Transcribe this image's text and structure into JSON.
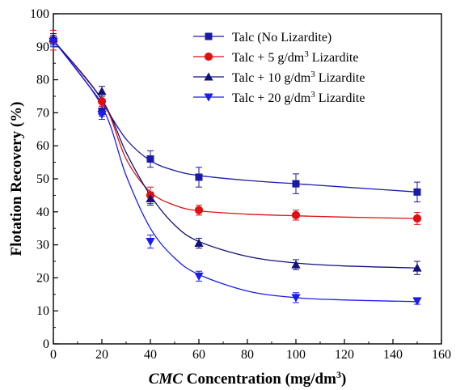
{
  "chart_data": {
    "type": "scatter",
    "title": "",
    "xlabel": {
      "italic": "CMC",
      "rest": " Concentration (mg/dm",
      "sup": "3",
      "close": ")"
    },
    "ylabel": "Flotation Recovery (%)",
    "xlim": [
      0,
      160
    ],
    "ylim": [
      0,
      100
    ],
    "xticks": [
      0,
      20,
      40,
      60,
      80,
      100,
      120,
      140,
      160
    ],
    "yticks": [
      0,
      10,
      20,
      30,
      40,
      50,
      60,
      70,
      80,
      90,
      100
    ],
    "grid": false,
    "legend_position": "top-right",
    "series": [
      {
        "name": "Talc (No Lizardite)",
        "legend": {
          "pre": "Talc (No Lizardite)",
          "sup": "",
          "post": ""
        },
        "color": "#1a1aa8",
        "marker": "square",
        "x": [
          0,
          20,
          40,
          60,
          100,
          150
        ],
        "y": [
          92,
          70.5,
          56,
          50.5,
          48.5,
          46
        ],
        "err": [
          1.5,
          1.5,
          2.5,
          3,
          3,
          3
        ],
        "fit": [
          0,
          92,
          20,
          73,
          30,
          62,
          40,
          55.5,
          50,
          52.5,
          60,
          51,
          80,
          49.5,
          100,
          48.5,
          120,
          47.5,
          150,
          46
        ]
      },
      {
        "name": "Talc + 5 g/dm³ Lizardite",
        "legend": {
          "pre": "Talc + 5   g/dm",
          "sup": "3",
          "post": " Lizardite"
        },
        "color": "#e01010",
        "marker": "circle",
        "x": [
          0,
          20,
          40,
          60,
          100,
          150
        ],
        "y": [
          92,
          73.5,
          45,
          40.5,
          39,
          38
        ],
        "err": [
          3,
          1.5,
          2.5,
          1.5,
          1.5,
          1.8
        ],
        "fit": [
          0,
          92,
          20,
          74,
          30,
          56,
          40,
          46,
          50,
          42,
          60,
          40.3,
          80,
          39.3,
          100,
          38.8,
          120,
          38.4,
          150,
          38
        ]
      },
      {
        "name": "Talc + 10 g/dm³ Lizardite",
        "legend": {
          "pre": "Talc + 10 g/dm",
          "sup": "3",
          "post": " Lizardite"
        },
        "color": "#12127a",
        "marker": "triangle-up",
        "x": [
          0,
          20,
          40,
          60,
          100,
          150
        ],
        "y": [
          92.5,
          76.5,
          44,
          30.5,
          24,
          23
        ],
        "err": [
          1.5,
          1.5,
          2,
          1.5,
          1.5,
          2
        ],
        "fit": [
          0,
          92,
          20,
          74,
          30,
          58,
          40,
          45,
          50,
          36,
          60,
          31,
          80,
          26.5,
          100,
          24.5,
          120,
          23.6,
          150,
          23
        ]
      },
      {
        "name": "Talc + 20 g/dm³ Lizardite",
        "legend": {
          "pre": "Talc + 20 g/dm",
          "sup": "3",
          "post": " Lizardite"
        },
        "color": "#1c1cf0",
        "marker": "triangle-down",
        "x": [
          0,
          20,
          40,
          60,
          100,
          150
        ],
        "y": [
          91.5,
          69.5,
          31,
          20.5,
          14,
          13
        ],
        "err": [
          1.5,
          1.5,
          2,
          1.5,
          1.5,
          1
        ],
        "fit": [
          0,
          92,
          20,
          72,
          30,
          51,
          40,
          35,
          50,
          26,
          60,
          21,
          80,
          16,
          100,
          14,
          120,
          13.3,
          150,
          12.8
        ]
      }
    ]
  }
}
